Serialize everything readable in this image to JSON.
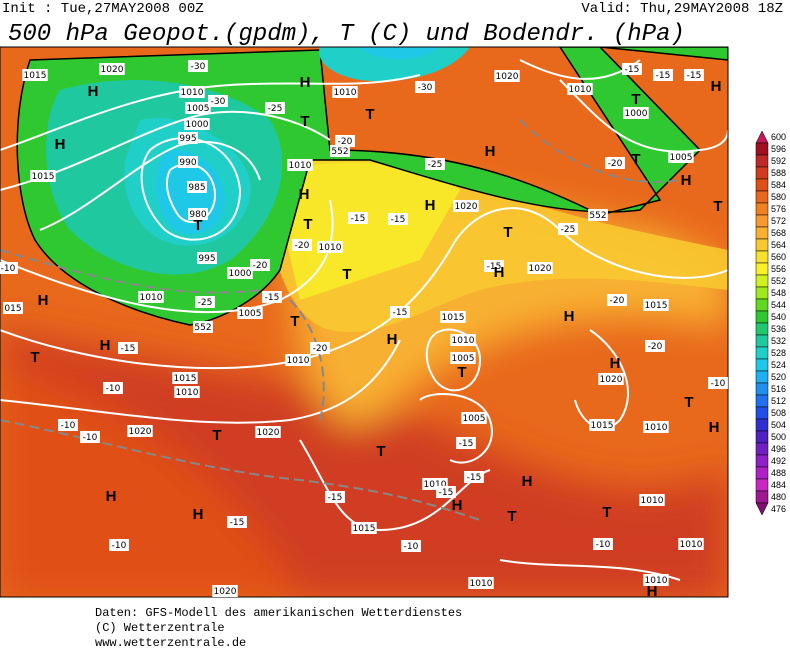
{
  "header": {
    "init": "Init : Tue,27MAY2008 00Z",
    "valid": "Valid: Thu,29MAY2008 18Z",
    "title": "500 hPa Geopot.(gpdm), T (C) und Bodendr. (hPa)"
  },
  "map": {
    "labels": [
      "1015",
      "1020",
      "-30",
      "H",
      "1010",
      "-30",
      "1020",
      "1010",
      "-15",
      "-15",
      "-15",
      "H",
      "H",
      "1010",
      "1005",
      "1000",
      "995",
      "990",
      "985",
      "980",
      "T",
      "995",
      "1000",
      "-20",
      "1005",
      "-25",
      "1010",
      "H",
      "T",
      "H",
      "-15",
      "H",
      "1015",
      "-25",
      "T",
      "T",
      "-20",
      "1010",
      "H",
      "T",
      "-20",
      "1010",
      "T",
      "-15",
      "T",
      "-20",
      "1010",
      "-15",
      "H",
      "1015",
      "1010",
      "1005",
      "T",
      "-15",
      "-15",
      "H",
      "1020",
      "-25",
      "H",
      "-20",
      "T",
      "1005",
      "H",
      "T",
      "-25",
      "T",
      "-15",
      "H",
      "1020",
      "-20",
      "1015",
      "H",
      "-20",
      "H",
      "1020",
      "T",
      "-10",
      "1015",
      "1010",
      "H",
      "1005",
      "-15",
      "T",
      "1010",
      "-15",
      "-15",
      "H",
      "H",
      "T",
      "1015",
      "-10",
      "1010",
      "1010",
      "T",
      "-10",
      "1010",
      "1010",
      "H",
      "-15",
      "H",
      "H",
      "-15",
      "-10",
      "1020",
      "1020",
      "T",
      "1020",
      "-10",
      "-10",
      "-10",
      "1015",
      "1010",
      "552",
      "552",
      "552",
      "T",
      "1000",
      "-10",
      "015",
      "-30"
    ]
  },
  "legend": {
    "levels": [
      600,
      596,
      592,
      588,
      584,
      580,
      576,
      572,
      568,
      564,
      560,
      556,
      552,
      548,
      544,
      540,
      536,
      532,
      528,
      524,
      520,
      516,
      512,
      508,
      504,
      500,
      496,
      492,
      488,
      484,
      480,
      476
    ],
    "colors": [
      "#c8185a",
      "#a01020",
      "#c02828",
      "#d03c20",
      "#e05014",
      "#e8681c",
      "#f08020",
      "#f89830",
      "#f8b030",
      "#f8c830",
      "#f8e030",
      "#f8f028",
      "#d0f020",
      "#a0e820",
      "#60d820",
      "#30c830",
      "#20c870",
      "#20c8a0",
      "#20d0c8",
      "#20c8e8",
      "#20b0f0",
      "#2090f0",
      "#2070f0",
      "#2050e8",
      "#3030d0",
      "#5020c0",
      "#7020c0",
      "#9020c8",
      "#b020c8",
      "#c828c0",
      "#a01890",
      "#801070"
    ]
  },
  "footer": {
    "lines": [
      "Daten: GFS-Modell des amerikanischen Wetterdienstes",
      "(C) Wetterzentrale",
      "www.wetterzentrale.de"
    ]
  }
}
